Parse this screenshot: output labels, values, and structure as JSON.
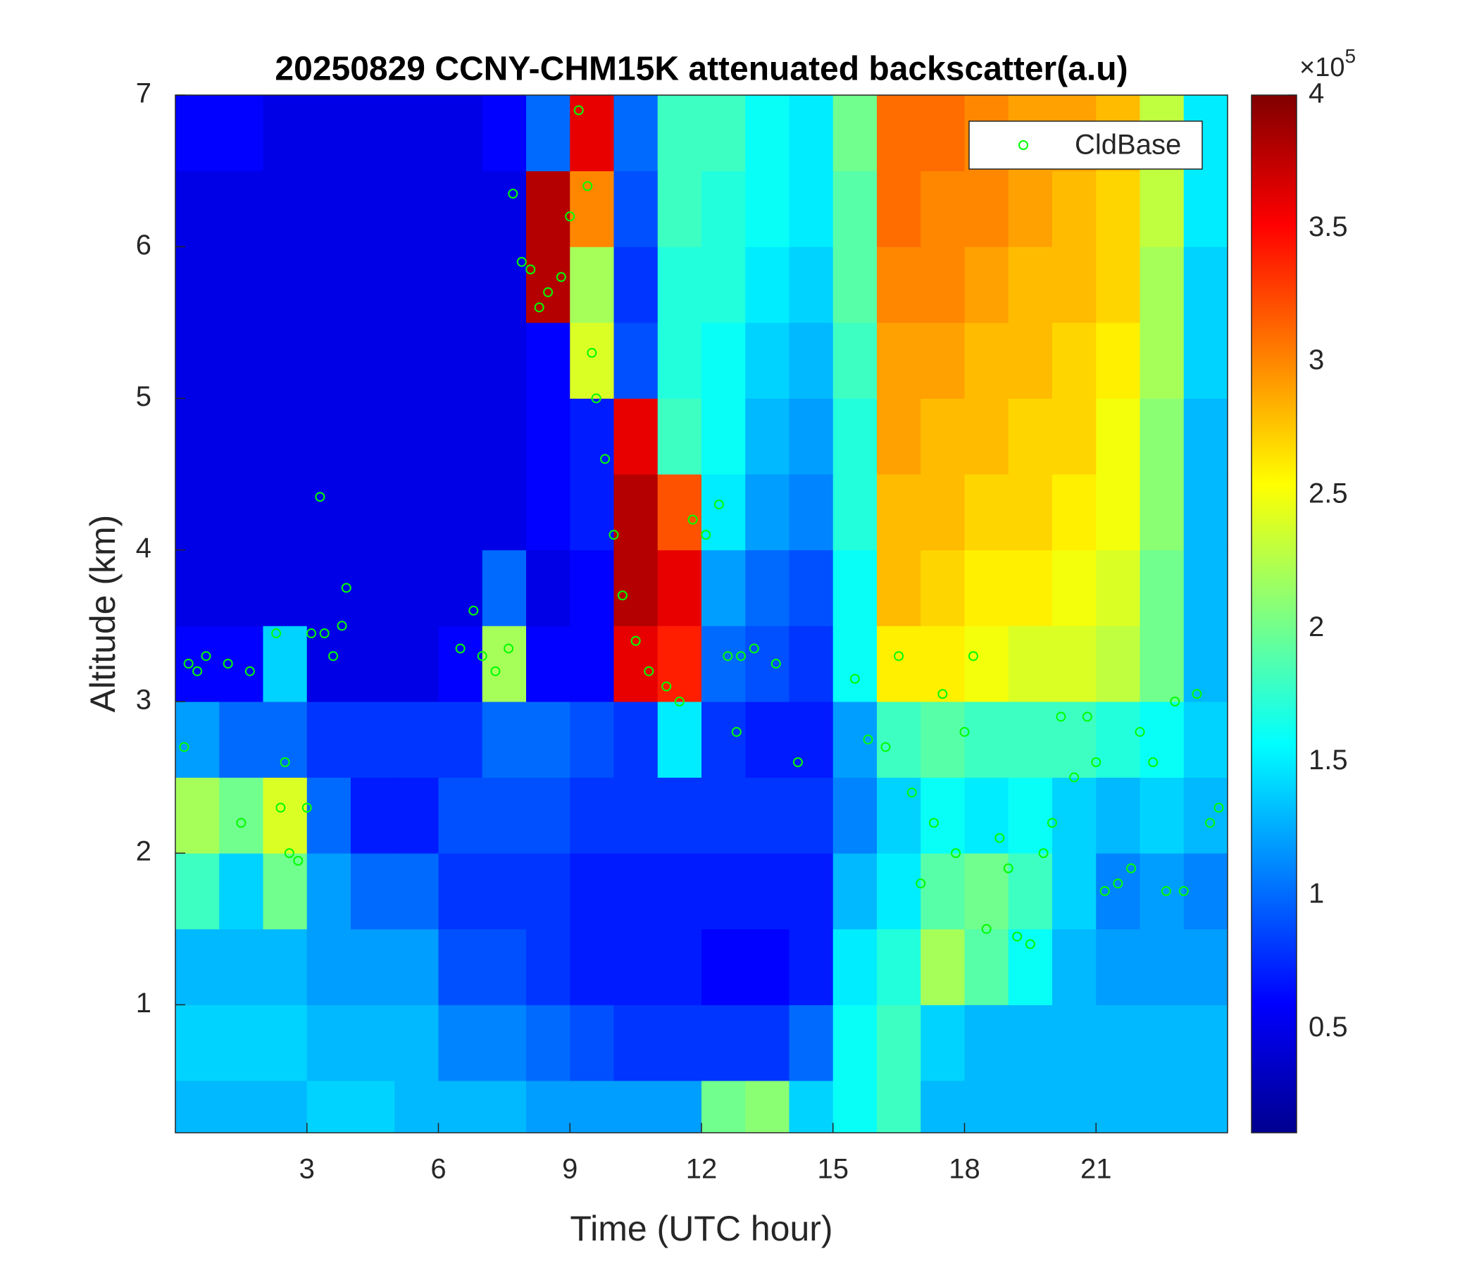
{
  "chart_data": {
    "type": "heatmap",
    "title": "20250829 CCNY-CHM15K attenuated backscatter(a.u)",
    "x_label": "Time (UTC hour)",
    "y_label": "Altitude (km)",
    "xlim": [
      0,
      24
    ],
    "xticks": [
      3,
      6,
      9,
      12,
      15,
      18,
      21
    ],
    "ylim": [
      0.156,
      7
    ],
    "yticks": [
      1,
      2,
      3,
      4,
      5,
      6,
      7
    ],
    "x_edges": [
      0,
      1,
      2,
      3,
      4,
      5,
      6,
      7,
      8,
      9,
      10,
      11,
      12,
      13,
      14,
      15,
      16,
      17,
      18,
      19,
      20,
      21,
      22,
      23,
      24
    ],
    "y_edges": [
      0.156,
      0.5,
      1,
      1.5,
      2,
      2.5,
      3,
      3.5,
      4,
      4.5,
      5,
      5.5,
      6,
      6.5,
      7
    ],
    "z": [
      [
        1.3,
        1.3,
        1.3,
        1.4,
        1.4,
        1.3,
        1.3,
        1.3,
        1.2,
        1.2,
        1.2,
        1.2,
        2.0,
        2.1,
        1.4,
        1.6,
        1.8,
        1.3,
        1.3,
        1.3,
        1.3,
        1.3,
        1.3,
        1.3
      ],
      [
        1.4,
        1.4,
        1.4,
        1.3,
        1.3,
        1.3,
        1.1,
        1.1,
        1.0,
        0.9,
        0.8,
        0.8,
        0.8,
        0.8,
        1.0,
        1.6,
        1.8,
        1.4,
        1.3,
        1.3,
        1.3,
        1.3,
        1.3,
        1.3
      ],
      [
        1.3,
        1.3,
        1.3,
        1.2,
        1.2,
        1.2,
        0.9,
        0.9,
        0.8,
        0.7,
        0.7,
        0.7,
        0.6,
        0.6,
        0.7,
        1.5,
        1.7,
        2.2,
        1.9,
        1.6,
        1.3,
        1.2,
        1.2,
        1.2
      ],
      [
        1.8,
        1.4,
        2.0,
        1.2,
        1.0,
        1.0,
        0.8,
        0.8,
        0.8,
        0.7,
        0.7,
        0.7,
        0.7,
        0.7,
        0.7,
        1.3,
        1.5,
        1.9,
        2.0,
        1.8,
        1.4,
        1.1,
        1.2,
        1.1
      ],
      [
        2.2,
        2.0,
        2.4,
        1.0,
        0.7,
        0.7,
        0.9,
        0.9,
        0.9,
        0.8,
        0.8,
        0.8,
        0.8,
        0.8,
        0.8,
        1.1,
        1.4,
        1.6,
        1.5,
        1.6,
        1.4,
        1.3,
        1.4,
        1.3
      ],
      [
        1.2,
        1.0,
        1.0,
        0.8,
        0.8,
        0.8,
        0.8,
        1.0,
        1.0,
        0.9,
        0.8,
        1.5,
        0.8,
        0.7,
        0.7,
        1.2,
        1.8,
        1.9,
        1.8,
        1.8,
        1.8,
        1.7,
        1.6,
        1.4
      ],
      [
        0.6,
        0.6,
        1.4,
        0.5,
        0.5,
        0.5,
        0.6,
        2.2,
        0.6,
        0.6,
        3.6,
        3.4,
        1.0,
        0.9,
        0.8,
        1.6,
        2.6,
        2.6,
        2.5,
        2.4,
        2.4,
        2.3,
        2.0,
        1.3
      ],
      [
        0.5,
        0.5,
        0.5,
        0.5,
        0.5,
        0.5,
        0.5,
        1.0,
        0.5,
        0.6,
        3.8,
        3.6,
        1.2,
        1.0,
        0.9,
        1.6,
        2.8,
        2.7,
        2.6,
        2.6,
        2.5,
        2.4,
        2.0,
        1.3
      ],
      [
        0.5,
        0.5,
        0.5,
        0.5,
        0.5,
        0.5,
        0.5,
        0.5,
        0.6,
        0.7,
        3.8,
        3.2,
        1.5,
        1.2,
        1.1,
        1.7,
        2.8,
        2.8,
        2.7,
        2.7,
        2.6,
        2.5,
        2.1,
        1.3
      ],
      [
        0.5,
        0.5,
        0.5,
        0.5,
        0.5,
        0.5,
        0.5,
        0.5,
        0.6,
        0.7,
        3.6,
        1.8,
        1.6,
        1.3,
        1.2,
        1.7,
        2.9,
        2.8,
        2.8,
        2.7,
        2.7,
        2.5,
        2.1,
        1.3
      ],
      [
        0.5,
        0.5,
        0.5,
        0.5,
        0.5,
        0.5,
        0.5,
        0.5,
        0.6,
        2.4,
        0.9,
        1.7,
        1.6,
        1.4,
        1.3,
        1.8,
        2.9,
        2.9,
        2.8,
        2.8,
        2.7,
        2.6,
        2.2,
        1.4
      ],
      [
        0.5,
        0.5,
        0.5,
        0.5,
        0.5,
        0.5,
        0.5,
        0.5,
        3.8,
        2.2,
        0.8,
        1.7,
        1.7,
        1.5,
        1.4,
        1.9,
        3.0,
        3.0,
        2.9,
        2.8,
        2.8,
        2.7,
        2.2,
        1.4
      ],
      [
        0.5,
        0.5,
        0.5,
        0.5,
        0.5,
        0.5,
        0.5,
        0.5,
        3.8,
        3.0,
        0.9,
        1.8,
        1.7,
        1.6,
        1.5,
        1.9,
        3.1,
        3.0,
        3.0,
        2.9,
        2.8,
        2.7,
        2.3,
        1.5
      ],
      [
        0.6,
        0.6,
        0.5,
        0.5,
        0.5,
        0.5,
        0.5,
        0.6,
        1.0,
        3.6,
        1.0,
        1.8,
        1.8,
        1.6,
        1.5,
        2.0,
        3.1,
        3.1,
        3.0,
        2.9,
        2.9,
        2.8,
        2.3,
        1.5
      ]
    ],
    "clim": [
      0.11,
      4
    ],
    "cticks": [
      0.5,
      1,
      1.5,
      2,
      2.5,
      3,
      3.5,
      4
    ],
    "colorbar_multiplier": "×10",
    "colorbar_exponent": 5,
    "colormap": "jet",
    "series": [
      {
        "name": "CldBase",
        "color": "#00ff00",
        "type": "scatter",
        "x": [
          0.2,
          0.3,
          0.5,
          0.7,
          1.5,
          1.2,
          1.7,
          2.3,
          2.5,
          2.4,
          2.6,
          2.8,
          3.0,
          3.1,
          3.4,
          3.6,
          3.8,
          3.9,
          3.3,
          6.5,
          6.8,
          7.0,
          7.3,
          7.6,
          7.7,
          7.9,
          8.1,
          8.3,
          8.5,
          8.8,
          9.0,
          9.2,
          9.4,
          9.5,
          9.6,
          9.8,
          10.0,
          10.2,
          10.5,
          10.8,
          11.2,
          11.5,
          11.8,
          12.1,
          12.4,
          12.6,
          12.9,
          13.2,
          12.8,
          13.7,
          14.2,
          15.5,
          15.8,
          16.2,
          16.5,
          16.8,
          17.0,
          17.3,
          17.5,
          17.8,
          18.0,
          18.2,
          18.5,
          18.8,
          19.0,
          19.2,
          19.5,
          19.8,
          20.0,
          20.2,
          20.5,
          20.8,
          21.0,
          21.2,
          21.5,
          21.8,
          22.0,
          22.3,
          22.6,
          22.8,
          23.0,
          23.3,
          23.6,
          23.8
        ],
        "y": [
          2.7,
          3.25,
          3.2,
          3.3,
          2.2,
          3.25,
          3.2,
          3.45,
          2.6,
          2.3,
          2.0,
          1.95,
          2.3,
          3.45,
          3.45,
          3.3,
          3.5,
          3.75,
          4.35,
          3.35,
          3.6,
          3.3,
          3.2,
          3.35,
          6.35,
          5.9,
          5.85,
          5.6,
          5.7,
          5.8,
          6.2,
          6.9,
          6.4,
          5.3,
          5.0,
          4.6,
          4.1,
          3.7,
          3.4,
          3.2,
          3.1,
          3.0,
          4.2,
          4.1,
          4.3,
          3.3,
          3.3,
          3.35,
          2.8,
          3.25,
          2.6,
          3.15,
          2.75,
          2.7,
          3.3,
          2.4,
          1.8,
          2.2,
          3.05,
          2.0,
          2.8,
          3.3,
          1.5,
          2.1,
          1.9,
          1.45,
          1.4,
          2.0,
          2.2,
          2.9,
          2.5,
          2.9,
          2.6,
          1.75,
          1.8,
          1.9,
          2.8,
          2.6,
          1.75,
          3.0,
          1.75,
          3.05,
          2.2,
          2.3
        ]
      }
    ],
    "legend": "upper right"
  }
}
